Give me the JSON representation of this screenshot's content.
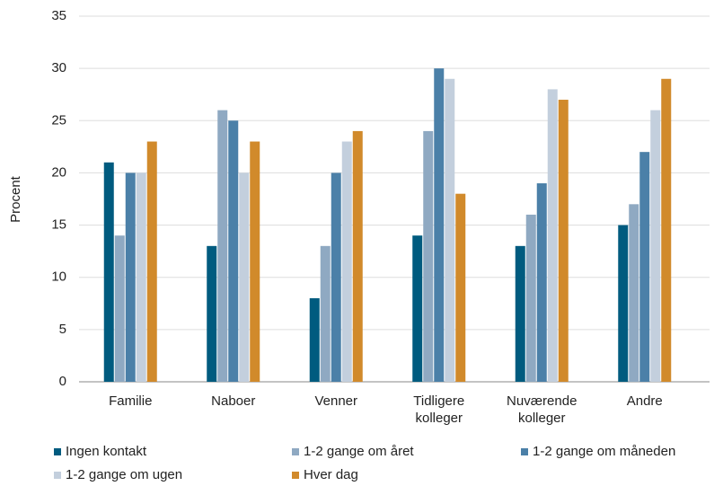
{
  "chart_data": {
    "type": "bar",
    "y_label": "Procent",
    "categories": [
      "Familie",
      "Naboer",
      "Venner",
      "Tidligere kolleger",
      "Nuværende kolleger",
      "Andre"
    ],
    "series": [
      {
        "name": "Ingen kontakt",
        "color": "#005b7f",
        "values": [
          21,
          13,
          8,
          14,
          13,
          15
        ]
      },
      {
        "name": "1-2 gange om året",
        "color": "#8fa9c2",
        "values": [
          14,
          26,
          13,
          24,
          16,
          17
        ]
      },
      {
        "name": "1-2 gange om måneden",
        "color": "#4b80a8",
        "values": [
          20,
          25,
          20,
          30,
          19,
          22
        ]
      },
      {
        "name": "1-2 gange om ugen",
        "color": "#c3cfdd",
        "values": [
          20,
          20,
          23,
          29,
          28,
          26
        ]
      },
      {
        "name": "Hver dag",
        "color": "#d18a2b",
        "values": [
          23,
          23,
          24,
          18,
          27,
          29
        ]
      }
    ],
    "ylim": [
      0,
      35
    ],
    "yticks": [
      0,
      5,
      10,
      15,
      20,
      25,
      30,
      35
    ],
    "grid": true,
    "legend": "bottom"
  }
}
